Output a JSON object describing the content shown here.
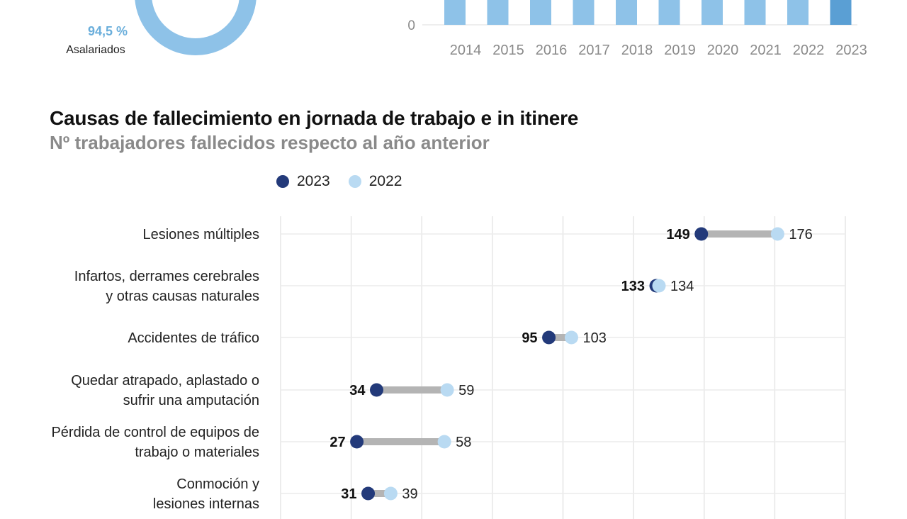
{
  "donut": {
    "percent_label": "94,5 %",
    "label": "Asalariados",
    "value_percent": 94.5,
    "color": "#8ec2e8"
  },
  "bars_chart": {
    "type": "bar",
    "categories": [
      "2014",
      "2015",
      "2016",
      "2017",
      "2018",
      "2019",
      "2020",
      "2021",
      "2022",
      "2023"
    ],
    "zero_tick": "0",
    "bar_color": "#8ec2e8",
    "highlight_color": "#5a9fd4",
    "highlight_index": 9
  },
  "title": "Causas de fallecimiento en jornada de trabajo e in itinere",
  "subtitle": "Nº trabajadores fallecidos respecto al año anterior",
  "legend": [
    {
      "label": "2023",
      "color": "#233a7a"
    },
    {
      "label": "2022",
      "color": "#b9daf2"
    }
  ],
  "chart_data": {
    "type": "dumbbell",
    "series": [
      {
        "name": "2023",
        "color": "#233a7a",
        "values": [
          149,
          133,
          95,
          34,
          27,
          31
        ]
      },
      {
        "name": "2022",
        "color": "#b9daf2",
        "values": [
          176,
          134,
          103,
          59,
          58,
          39
        ]
      }
    ],
    "categories": [
      [
        "Lesiones múltiples"
      ],
      [
        "Infartos, derrames cerebrales",
        "y otras causas naturales"
      ],
      [
        "Accidentes de tráfico"
      ],
      [
        "Quedar atrapado, aplastado o",
        "sufrir una amputación"
      ],
      [
        "Pérdida de control de equipos de",
        "trabajo o materiales"
      ],
      [
        "Conmoción y",
        "lesiones internas"
      ]
    ],
    "xlim": [
      0,
      200
    ],
    "grid": true,
    "connector_color": "#b4b4b4"
  }
}
